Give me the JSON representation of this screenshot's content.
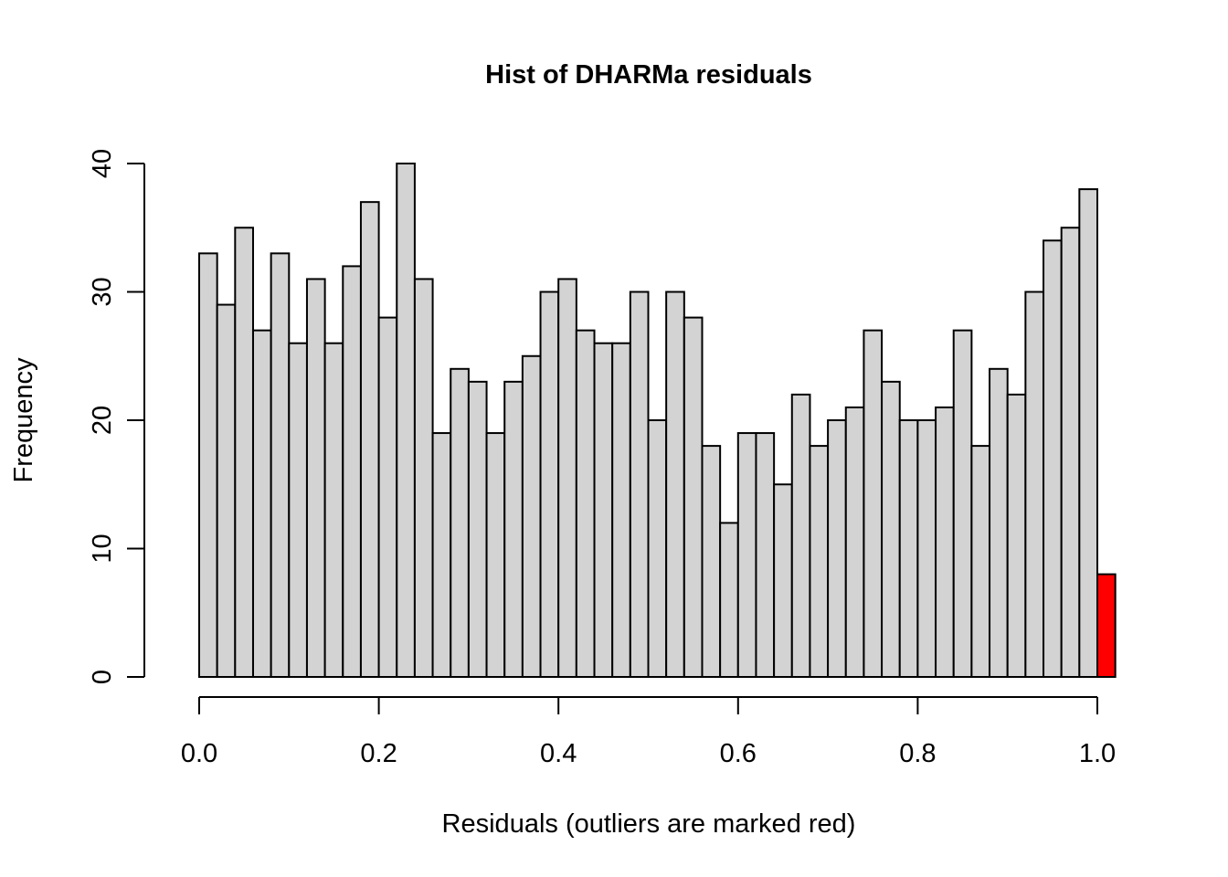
{
  "chart_data": {
    "type": "bar",
    "title": "Hist of DHARMa residuals",
    "xlabel": "Residuals (outliers are marked red)",
    "ylabel": "Frequency",
    "bin_width": 0.02,
    "bin_start": 0.0,
    "values": [
      33,
      29,
      35,
      27,
      33,
      26,
      31,
      26,
      32,
      37,
      28,
      40,
      31,
      19,
      24,
      23,
      19,
      23,
      25,
      30,
      31,
      27,
      26,
      26,
      30,
      20,
      30,
      28,
      18,
      12,
      19,
      19,
      15,
      22,
      18,
      20,
      21,
      27,
      23,
      20,
      20,
      21,
      27,
      18,
      24,
      22,
      30,
      34,
      35,
      38
    ],
    "outlier_bin": {
      "x0": 1.0,
      "x1": 1.02,
      "value": 8
    },
    "bar_color": "#d3d3d3",
    "outlier_color": "#ff0000",
    "xlim": [
      0,
      1.02
    ],
    "ylim": [
      0,
      40
    ],
    "x_ticks": [
      "0.0",
      "0.2",
      "0.4",
      "0.6",
      "0.8",
      "1.0"
    ],
    "y_ticks": [
      "0",
      "10",
      "20",
      "30",
      "40"
    ],
    "grid": false,
    "legend": "none"
  }
}
